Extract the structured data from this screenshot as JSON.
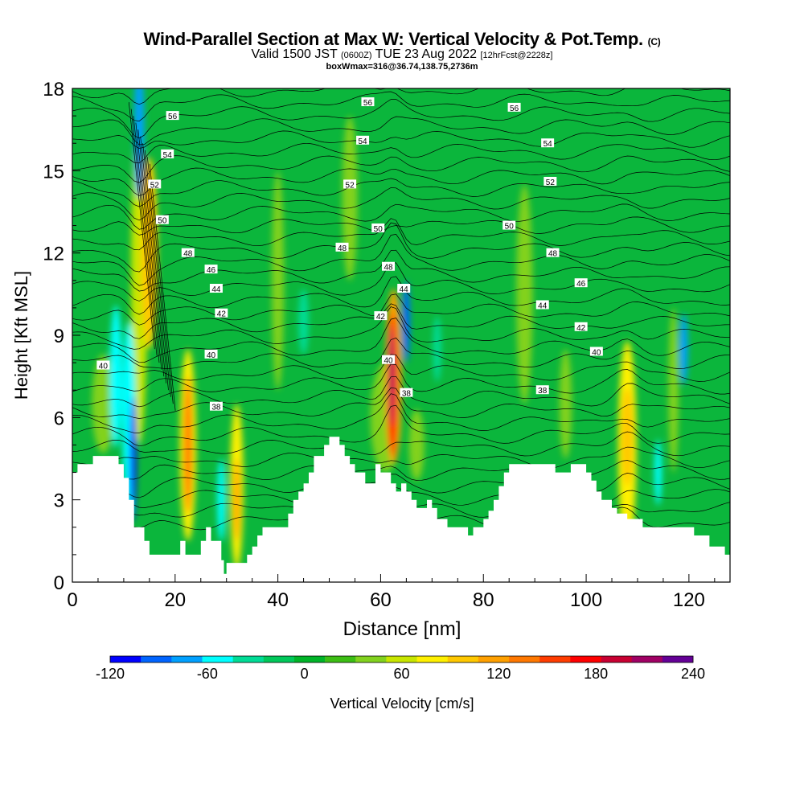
{
  "header": {
    "title": "Wind-Parallel Section at Max W: Vertical Velocity & Pot.Temp.",
    "title_mark": "(C)",
    "valid_a": "Valid 1500 JST",
    "valid_z": "(0600Z)",
    "valid_b": "TUE 23 Aug 2022",
    "forecast": "[12hrFcst@2228z]",
    "box_info": "boxWmax=316@36.74,138.75,2736m"
  },
  "chart_data": {
    "type": "heatmap",
    "xlabel": "Distance [nm]",
    "ylabel": "Height [Kft MSL]",
    "xlim": [
      0,
      128
    ],
    "ylim": [
      0,
      18
    ],
    "x_ticks": [
      0,
      20,
      40,
      60,
      80,
      100,
      120
    ],
    "y_ticks": [
      0,
      3,
      6,
      9,
      12,
      15,
      18
    ],
    "colorbar": {
      "label": "Vertical Velocity [cm/s]",
      "ticks": [
        -120,
        -60,
        0,
        60,
        120,
        180,
        240
      ],
      "colors": [
        "#0000ff",
        "#0064ff",
        "#00a0ff",
        "#00ffff",
        "#00dc96",
        "#00c85a",
        "#00b428",
        "#3cbe14",
        "#82d21e",
        "#c8e600",
        "#fff000",
        "#ffc800",
        "#ffa000",
        "#ff7800",
        "#ff3c00",
        "#ff0000",
        "#c80032",
        "#a00064",
        "#640096"
      ]
    },
    "background_color": "#0bb63c",
    "terrain": [
      [
        0,
        4
      ],
      [
        1,
        4
      ],
      [
        1,
        4.3
      ],
      [
        4,
        4.3
      ],
      [
        4,
        4.6
      ],
      [
        9,
        4.6
      ],
      [
        9,
        4.3
      ],
      [
        10,
        4.3
      ],
      [
        10,
        3.8
      ],
      [
        11,
        3.8
      ],
      [
        11,
        3
      ],
      [
        12,
        3
      ],
      [
        12,
        2
      ],
      [
        14,
        2
      ],
      [
        14,
        1.5
      ],
      [
        15,
        1.5
      ],
      [
        15,
        1
      ],
      [
        21,
        1
      ],
      [
        21,
        1.5
      ],
      [
        22,
        1.5
      ],
      [
        22,
        1
      ],
      [
        25,
        1
      ],
      [
        25,
        1.5
      ],
      [
        26,
        1.5
      ],
      [
        26,
        2
      ],
      [
        27,
        2
      ],
      [
        27,
        1.5
      ],
      [
        29,
        1.5
      ],
      [
        29,
        0.8
      ],
      [
        29.5,
        0.8
      ],
      [
        29.5,
        0.3
      ],
      [
        30,
        0.3
      ],
      [
        30,
        0.7
      ],
      [
        34,
        0.7
      ],
      [
        34,
        1
      ],
      [
        35,
        1
      ],
      [
        35,
        1.3
      ],
      [
        36,
        1.3
      ],
      [
        36,
        1.7
      ],
      [
        37,
        1.7
      ],
      [
        37,
        2
      ],
      [
        42,
        2
      ],
      [
        42,
        2.5
      ],
      [
        43,
        2.5
      ],
      [
        43,
        3
      ],
      [
        44,
        3
      ],
      [
        44,
        3.3
      ],
      [
        45,
        3.3
      ],
      [
        45,
        3.6
      ],
      [
        46,
        3.6
      ],
      [
        46,
        4
      ],
      [
        47,
        4
      ],
      [
        47,
        4.6
      ],
      [
        49,
        4.6
      ],
      [
        49,
        5
      ],
      [
        50,
        5
      ],
      [
        50,
        5.3
      ],
      [
        52,
        5.3
      ],
      [
        52,
        5
      ],
      [
        53,
        5
      ],
      [
        53,
        4.6
      ],
      [
        54,
        4.6
      ],
      [
        54,
        4.3
      ],
      [
        55,
        4.3
      ],
      [
        55,
        4
      ],
      [
        57,
        4
      ],
      [
        57,
        3.6
      ],
      [
        59,
        3.6
      ],
      [
        59,
        4.3
      ],
      [
        60,
        4.3
      ],
      [
        60,
        4
      ],
      [
        62,
        4
      ],
      [
        62,
        3.6
      ],
      [
        63,
        3.6
      ],
      [
        63,
        3.3
      ],
      [
        64,
        3.3
      ],
      [
        64,
        3.6
      ],
      [
        65,
        3.6
      ],
      [
        65,
        3.3
      ],
      [
        66,
        3.3
      ],
      [
        66,
        3
      ],
      [
        67,
        3
      ],
      [
        67,
        2.7
      ],
      [
        69,
        2.7
      ],
      [
        69,
        3
      ],
      [
        70,
        3
      ],
      [
        70,
        2.7
      ],
      [
        71,
        2.7
      ],
      [
        71,
        2.3
      ],
      [
        73,
        2.3
      ],
      [
        73,
        2
      ],
      [
        77,
        2
      ],
      [
        77,
        1.7
      ],
      [
        78,
        1.7
      ],
      [
        78,
        2
      ],
      [
        80,
        2
      ],
      [
        80,
        2.3
      ],
      [
        81,
        2.3
      ],
      [
        81,
        2.6
      ],
      [
        82,
        2.6
      ],
      [
        82,
        3
      ],
      [
        83,
        3
      ],
      [
        83,
        3.5
      ],
      [
        84,
        3.5
      ],
      [
        84,
        4
      ],
      [
        85,
        4
      ],
      [
        85,
        4.3
      ],
      [
        94,
        4.3
      ],
      [
        94,
        4
      ],
      [
        97,
        4
      ],
      [
        97,
        4.3
      ],
      [
        100,
        4.3
      ],
      [
        100,
        4
      ],
      [
        101,
        4
      ],
      [
        101,
        3.7
      ],
      [
        102,
        3.7
      ],
      [
        102,
        3.3
      ],
      [
        103,
        3.3
      ],
      [
        103,
        3
      ],
      [
        105,
        3
      ],
      [
        105,
        2.7
      ],
      [
        106,
        2.7
      ],
      [
        106,
        2.5
      ],
      [
        108,
        2.5
      ],
      [
        108,
        2.3
      ],
      [
        111,
        2.3
      ],
      [
        111,
        2
      ],
      [
        121,
        2
      ],
      [
        121,
        1.7
      ],
      [
        124,
        1.7
      ],
      [
        124,
        1.3
      ],
      [
        127,
        1.3
      ],
      [
        127,
        1
      ],
      [
        128,
        1
      ]
    ],
    "updraft_cores": [
      {
        "x": 6,
        "y": 6.5,
        "rx": 2.2,
        "ry": 1.8,
        "value": 40
      },
      {
        "x": 13,
        "y": 11,
        "rx": 1.6,
        "ry": 6,
        "value": 60
      },
      {
        "x": 15,
        "y": 12,
        "rx": 1.6,
        "ry": 3.5,
        "value": 100
      },
      {
        "x": 22.5,
        "y": 5,
        "rx": 1.6,
        "ry": 3.5,
        "value": 90
      },
      {
        "x": 22.5,
        "y": 5,
        "rx": 0.8,
        "ry": 2.5,
        "value": 140
      },
      {
        "x": 32,
        "y": 3.5,
        "rx": 1.3,
        "ry": 3,
        "value": 90
      },
      {
        "x": 32,
        "y": 3,
        "rx": 0.6,
        "ry": 1.5,
        "value": 130
      },
      {
        "x": 40,
        "y": 11,
        "rx": 1.2,
        "ry": 4,
        "value": 40
      },
      {
        "x": 54,
        "y": 14,
        "rx": 1.5,
        "ry": 3,
        "value": 40
      },
      {
        "x": 61,
        "y": 6,
        "rx": 3,
        "ry": 2,
        "value": 40
      },
      {
        "x": 62.5,
        "y": 7.5,
        "rx": 1.6,
        "ry": 3.2,
        "value": 120
      },
      {
        "x": 62.3,
        "y": 7.2,
        "rx": 0.9,
        "ry": 2.6,
        "value": 180
      },
      {
        "x": 62.2,
        "y": 7.5,
        "rx": 0.45,
        "ry": 1.8,
        "value": 220
      },
      {
        "x": 67,
        "y": 5,
        "rx": 1.5,
        "ry": 1.3,
        "value": 50
      },
      {
        "x": 88,
        "y": 10.5,
        "rx": 1.6,
        "ry": 4,
        "value": 40
      },
      {
        "x": 96,
        "y": 6.5,
        "rx": 1.2,
        "ry": 2,
        "value": 40
      },
      {
        "x": 108,
        "y": 5,
        "rx": 1.8,
        "ry": 3.8,
        "value": 80
      },
      {
        "x": 108,
        "y": 5.3,
        "rx": 1.1,
        "ry": 1.8,
        "value": 110
      },
      {
        "x": 117,
        "y": 7,
        "rx": 1,
        "ry": 3,
        "value": 50
      }
    ],
    "downdraft_cores": [
      {
        "x": 8.5,
        "y": 7.5,
        "rx": 1.2,
        "ry": 2.6,
        "value": -60
      },
      {
        "x": 11,
        "y": 6,
        "rx": 1.3,
        "ry": 3.5,
        "value": -60
      },
      {
        "x": 11.8,
        "y": 4.5,
        "rx": 0.6,
        "ry": 2.3,
        "value": -120
      },
      {
        "x": 13,
        "y": 16.5,
        "rx": 1,
        "ry": 2.5,
        "value": -80
      },
      {
        "x": 29,
        "y": 3,
        "rx": 0.8,
        "ry": 1.5,
        "value": -50
      },
      {
        "x": 45,
        "y": 9.5,
        "rx": 1,
        "ry": 1.2,
        "value": -40
      },
      {
        "x": 65,
        "y": 9.5,
        "rx": 0.7,
        "ry": 1.5,
        "value": -100
      },
      {
        "x": 71,
        "y": 8.5,
        "rx": 0.8,
        "ry": 1.2,
        "value": -40
      },
      {
        "x": 114,
        "y": 4,
        "rx": 0.7,
        "ry": 1.2,
        "value": -50
      },
      {
        "x": 119,
        "y": 8.5,
        "rx": 0.8,
        "ry": 1.3,
        "value": -80
      }
    ],
    "theta_labels": [
      {
        "text": "56",
        "x": 19.5,
        "y": 17
      },
      {
        "text": "54",
        "x": 18.5,
        "y": 15.6
      },
      {
        "text": "52",
        "x": 16,
        "y": 14.5
      },
      {
        "text": "50",
        "x": 17.5,
        "y": 13.2
      },
      {
        "text": "48",
        "x": 22.5,
        "y": 12
      },
      {
        "text": "46",
        "x": 27,
        "y": 11.4
      },
      {
        "text": "44",
        "x": 28,
        "y": 10.7
      },
      {
        "text": "42",
        "x": 29,
        "y": 9.8
      },
      {
        "text": "40",
        "x": 27,
        "y": 8.3
      },
      {
        "text": "38",
        "x": 28,
        "y": 6.4
      },
      {
        "text": "40",
        "x": 6,
        "y": 7.9
      },
      {
        "text": "56",
        "x": 57.5,
        "y": 17.5
      },
      {
        "text": "54",
        "x": 56.5,
        "y": 16.1
      },
      {
        "text": "52",
        "x": 54,
        "y": 14.5
      },
      {
        "text": "48",
        "x": 52.5,
        "y": 12.2
      },
      {
        "text": "50",
        "x": 59.5,
        "y": 12.9
      },
      {
        "text": "48",
        "x": 61.5,
        "y": 11.5
      },
      {
        "text": "44",
        "x": 64.5,
        "y": 10.7
      },
      {
        "text": "42",
        "x": 60,
        "y": 9.7
      },
      {
        "text": "40",
        "x": 61.5,
        "y": 8.1
      },
      {
        "text": "38",
        "x": 65,
        "y": 6.9
      },
      {
        "text": "56",
        "x": 86,
        "y": 17.3
      },
      {
        "text": "54",
        "x": 92.5,
        "y": 16
      },
      {
        "text": "52",
        "x": 93,
        "y": 14.6
      },
      {
        "text": "50",
        "x": 85,
        "y": 13
      },
      {
        "text": "48",
        "x": 93.5,
        "y": 12
      },
      {
        "text": "46",
        "x": 99,
        "y": 10.9
      },
      {
        "text": "44",
        "x": 91.5,
        "y": 10.1
      },
      {
        "text": "42",
        "x": 99,
        "y": 9.3
      },
      {
        "text": "40",
        "x": 102,
        "y": 8.4
      },
      {
        "text": "38",
        "x": 91.5,
        "y": 7
      }
    ]
  }
}
